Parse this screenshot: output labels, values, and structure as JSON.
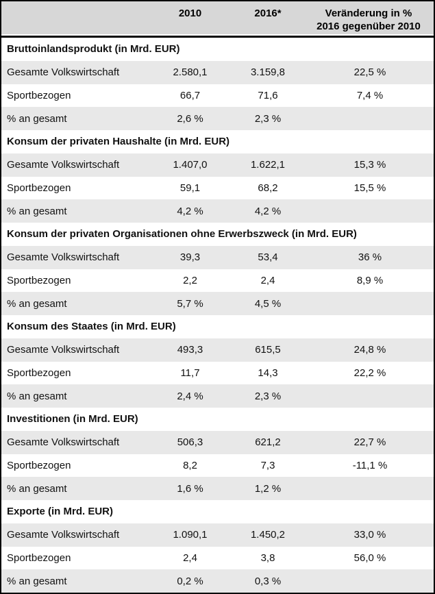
{
  "colors": {
    "header_bg": "#d7d7d7",
    "row_shade_bg": "#e8e8e8",
    "border": "#000000",
    "text": "#111111"
  },
  "table": {
    "header": {
      "col_label": "",
      "col_2010": "2010",
      "col_2016": "2016*",
      "col_change_line1": "Veränderung in %",
      "col_change_line2": "2016 gegenüber 2010"
    },
    "sections": [
      {
        "title": "Bruttoinlandsprodukt (in Mrd. EUR)",
        "rows": [
          {
            "label": "Gesamte Volkswirtschaft",
            "v2010": "2.580,1",
            "v2016": "3.159,8",
            "change": "22,5 %"
          },
          {
            "label": "Sportbezogen",
            "v2010": "66,7",
            "v2016": "71,6",
            "change": "7,4 %"
          },
          {
            "label": "% an gesamt",
            "v2010": "2,6 %",
            "v2016": "2,3 %",
            "change": ""
          }
        ]
      },
      {
        "title": "Konsum der privaten Haushalte (in Mrd. EUR)",
        "rows": [
          {
            "label": "Gesamte Volkswirtschaft",
            "v2010": "1.407,0",
            "v2016": "1.622,1",
            "change": "15,3 %"
          },
          {
            "label": "Sportbezogen",
            "v2010": "59,1",
            "v2016": "68,2",
            "change": "15,5 %"
          },
          {
            "label": "% an gesamt",
            "v2010": "4,2 %",
            "v2016": "4,2 %",
            "change": ""
          }
        ]
      },
      {
        "title": "Konsum der privaten Organisationen ohne Erwerbszweck (in Mrd. EUR)",
        "rows": [
          {
            "label": "Gesamte Volkswirtschaft",
            "v2010": "39,3",
            "v2016": "53,4",
            "change": "36 %"
          },
          {
            "label": "Sportbezogen",
            "v2010": "2,2",
            "v2016": "2,4",
            "change": "8,9 %"
          },
          {
            "label": "% an gesamt",
            "v2010": "5,7 %",
            "v2016": "4,5 %",
            "change": ""
          }
        ]
      },
      {
        "title": "Konsum des Staates (in Mrd. EUR)",
        "rows": [
          {
            "label": "Gesamte Volkswirtschaft",
            "v2010": "493,3",
            "v2016": "615,5",
            "change": "24,8 %"
          },
          {
            "label": "Sportbezogen",
            "v2010": "11,7",
            "v2016": "14,3",
            "change": "22,2 %"
          },
          {
            "label": "% an gesamt",
            "v2010": "2,4 %",
            "v2016": "2,3 %",
            "change": ""
          }
        ]
      },
      {
        "title": "Investitionen (in Mrd. EUR)",
        "rows": [
          {
            "label": "Gesamte Volkswirtschaft",
            "v2010": "506,3",
            "v2016": "621,2",
            "change": "22,7 %"
          },
          {
            "label": "Sportbezogen",
            "v2010": "8,2",
            "v2016": "7,3",
            "change": "-11,1 %"
          },
          {
            "label": "% an gesamt",
            "v2010": "1,6 %",
            "v2016": "1,2 %",
            "change": ""
          }
        ]
      },
      {
        "title": "Exporte (in Mrd. EUR)",
        "rows": [
          {
            "label": "Gesamte Volkswirtschaft",
            "v2010": "1.090,1",
            "v2016": "1.450,2",
            "change": "33,0 %"
          },
          {
            "label": "Sportbezogen",
            "v2010": "2,4",
            "v2016": "3,8",
            "change": "56,0 %"
          },
          {
            "label": "% an gesamt",
            "v2010": "0,2 %",
            "v2016": "0,3 %",
            "change": ""
          }
        ]
      }
    ]
  }
}
